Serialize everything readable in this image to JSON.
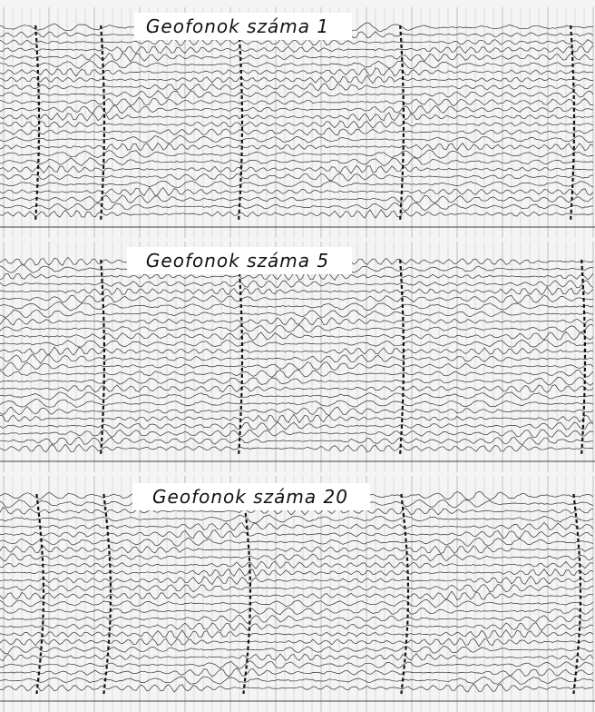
{
  "panels": [
    {
      "title": "Geofonok száma 1"
    },
    {
      "title": "Geofonok száma 5"
    },
    {
      "title": "Geofonok száma 20"
    }
  ]
}
